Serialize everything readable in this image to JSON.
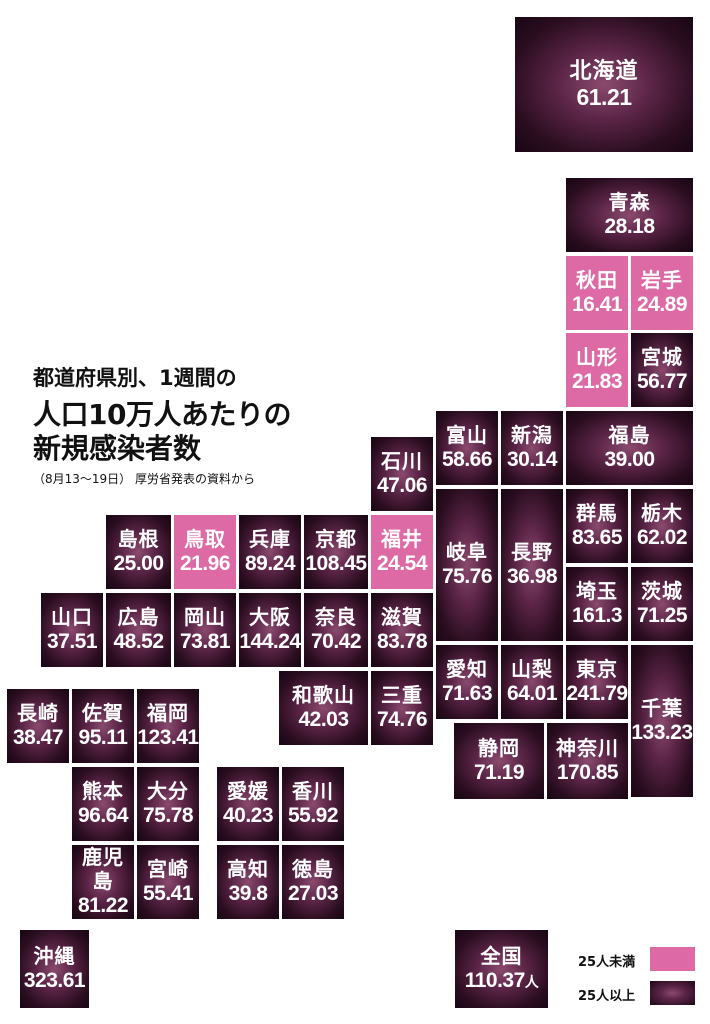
{
  "title": {
    "line1": "都道府県別、1週間の",
    "line2": "人口10万人あたりの",
    "line3": "新規感染者数"
  },
  "source": "（8月13〜19日）  厚労省発表の資料から",
  "legend": {
    "under25": "25人未満",
    "over25": "25人以上",
    "pink_color": "#dd6aa4",
    "dark_color": "#2a0d1f"
  },
  "prefectures": {
    "hokkaido": {
      "name": "北海道",
      "value": "61.21"
    },
    "aomori": {
      "name": "青森",
      "value": "28.18"
    },
    "akita": {
      "name": "秋田",
      "value": "16.41"
    },
    "iwate": {
      "name": "岩手",
      "value": "24.89"
    },
    "yamagata": {
      "name": "山形",
      "value": "21.83"
    },
    "miyagi": {
      "name": "宮城",
      "value": "56.77"
    },
    "toyama": {
      "name": "富山",
      "value": "58.66"
    },
    "niigata": {
      "name": "新潟",
      "value": "30.14"
    },
    "fukushima": {
      "name": "福島",
      "value": "39.00"
    },
    "ishikawa": {
      "name": "石川",
      "value": "47.06"
    },
    "fukui": {
      "name": "福井",
      "value": "24.54"
    },
    "gifu": {
      "name": "岐阜",
      "value": "75.76"
    },
    "nagano": {
      "name": "長野",
      "value": "36.98"
    },
    "gunma": {
      "name": "群馬",
      "value": "83.65"
    },
    "tochigi": {
      "name": "栃木",
      "value": "62.02"
    },
    "saitama": {
      "name": "埼玉",
      "value": "161.3"
    },
    "ibaraki": {
      "name": "茨城",
      "value": "71.25"
    },
    "shimane": {
      "name": "島根",
      "value": "25.00"
    },
    "tottori": {
      "name": "鳥取",
      "value": "21.96"
    },
    "hyogo": {
      "name": "兵庫",
      "value": "89.24"
    },
    "kyoto": {
      "name": "京都",
      "value": "108.45"
    },
    "yamaguchi": {
      "name": "山口",
      "value": "37.51"
    },
    "hiroshima": {
      "name": "広島",
      "value": "48.52"
    },
    "okayama": {
      "name": "岡山",
      "value": "73.81"
    },
    "osaka": {
      "name": "大阪",
      "value": "144.24"
    },
    "nara": {
      "name": "奈良",
      "value": "70.42"
    },
    "shiga": {
      "name": "滋賀",
      "value": "83.78"
    },
    "aichi": {
      "name": "愛知",
      "value": "71.63"
    },
    "yamanashi": {
      "name": "山梨",
      "value": "64.01"
    },
    "tokyo": {
      "name": "東京",
      "value": "241.79"
    },
    "chiba": {
      "name": "千葉",
      "value": "133.23"
    },
    "wakayama": {
      "name": "和歌山",
      "value": "42.03"
    },
    "mie": {
      "name": "三重",
      "value": "74.76"
    },
    "shizuoka": {
      "name": "静岡",
      "value": "71.19"
    },
    "kanagawa": {
      "name": "神奈川",
      "value": "170.85"
    },
    "nagasaki": {
      "name": "長崎",
      "value": "38.47"
    },
    "saga": {
      "name": "佐賀",
      "value": "95.11"
    },
    "fukuoka": {
      "name": "福岡",
      "value": "123.41"
    },
    "kumamoto": {
      "name": "熊本",
      "value": "96.64"
    },
    "oita": {
      "name": "大分",
      "value": "75.78"
    },
    "ehime": {
      "name": "愛媛",
      "value": "40.23"
    },
    "kagawa": {
      "name": "香川",
      "value": "55.92"
    },
    "kagoshima": {
      "name": "鹿児島",
      "value": "81.22"
    },
    "miyazaki": {
      "name": "宮崎",
      "value": "55.41"
    },
    "kochi": {
      "name": "高知",
      "value": "39.8"
    },
    "tokushima": {
      "name": "徳島",
      "value": "27.03"
    },
    "okinawa": {
      "name": "沖縄",
      "value": "323.61"
    }
  },
  "national": {
    "name": "全国",
    "value": "110.37",
    "unit": "人"
  }
}
